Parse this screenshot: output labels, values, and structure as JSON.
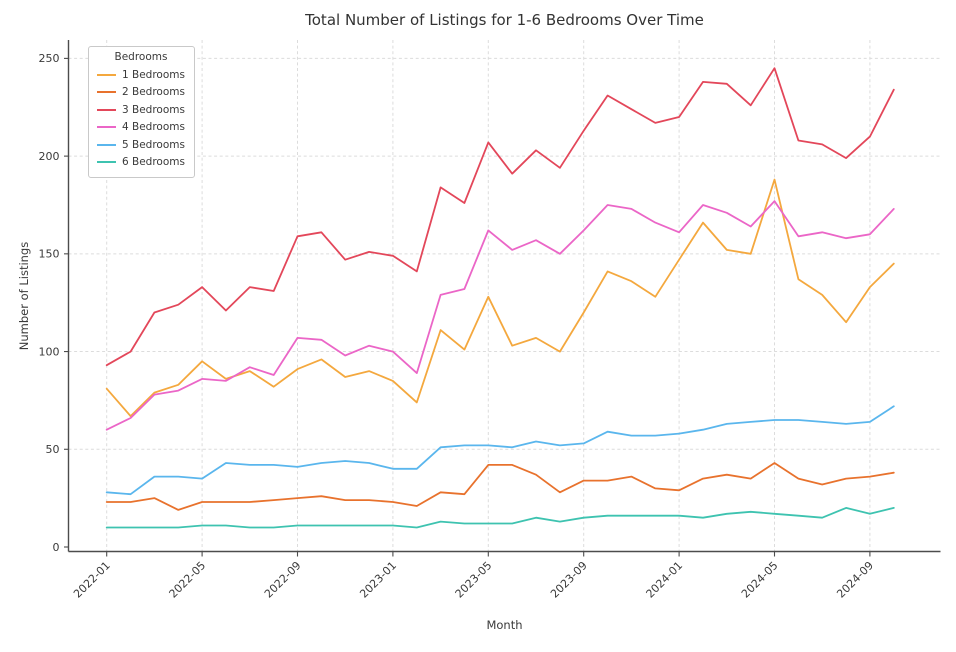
{
  "chart_data": {
    "type": "line",
    "title": "Total Number of Listings for 1-6 Bedrooms Over Time",
    "xlabel": "Month",
    "ylabel": "Number of Listings",
    "legend": {
      "title": "Bedrooms",
      "position": "upper-left"
    },
    "grid": true,
    "ylim": [
      0,
      250
    ],
    "yticks": [
      0,
      50,
      100,
      150,
      200,
      250
    ],
    "xticks": [
      "2022-01",
      "2022-05",
      "2022-09",
      "2023-01",
      "2023-05",
      "2023-09",
      "2024-01",
      "2024-05",
      "2024-09"
    ],
    "x": [
      "2022-01",
      "2022-02",
      "2022-03",
      "2022-04",
      "2022-05",
      "2022-06",
      "2022-07",
      "2022-08",
      "2022-09",
      "2022-10",
      "2022-11",
      "2022-12",
      "2023-01",
      "2023-02",
      "2023-03",
      "2023-04",
      "2023-05",
      "2023-06",
      "2023-07",
      "2023-08",
      "2023-09",
      "2023-10",
      "2023-11",
      "2023-12",
      "2024-01",
      "2024-02",
      "2024-03",
      "2024-04",
      "2024-05",
      "2024-06",
      "2024-07",
      "2024-08",
      "2024-09",
      "2024-10"
    ],
    "series": [
      {
        "name": "1 Bedrooms",
        "color": "#F4A83E",
        "values": [
          81,
          67,
          79,
          83,
          95,
          86,
          90,
          82,
          91,
          96,
          87,
          90,
          85,
          74,
          111,
          101,
          128,
          103,
          107,
          100,
          120,
          141,
          136,
          128,
          147,
          166,
          152,
          150,
          188,
          137,
          129,
          115,
          133,
          145
        ]
      },
      {
        "name": "2 Bedrooms",
        "color": "#E8722D",
        "values": [
          23,
          23,
          25,
          19,
          23,
          23,
          23,
          24,
          25,
          26,
          24,
          24,
          23,
          21,
          28,
          27,
          42,
          42,
          37,
          28,
          34,
          34,
          36,
          30,
          29,
          35,
          37,
          35,
          43,
          35,
          32,
          35,
          36,
          38
        ]
      },
      {
        "name": "3 Bedrooms",
        "color": "#E3475A",
        "values": [
          93,
          100,
          120,
          124,
          133,
          121,
          133,
          131,
          159,
          161,
          147,
          151,
          149,
          141,
          184,
          176,
          207,
          191,
          203,
          194,
          213,
          231,
          224,
          217,
          220,
          238,
          237,
          226,
          245,
          208,
          206,
          199,
          210,
          234
        ]
      },
      {
        "name": "4 Bedrooms",
        "color": "#EB66C7",
        "values": [
          60,
          66,
          78,
          80,
          86,
          85,
          92,
          88,
          107,
          106,
          98,
          103,
          100,
          89,
          129,
          132,
          162,
          152,
          157,
          150,
          162,
          175,
          173,
          166,
          161,
          175,
          171,
          164,
          177,
          159,
          161,
          158,
          160,
          173
        ]
      },
      {
        "name": "5 Bedrooms",
        "color": "#5AB6ED",
        "values": [
          28,
          27,
          36,
          36,
          35,
          43,
          42,
          42,
          41,
          43,
          44,
          43,
          40,
          40,
          51,
          52,
          52,
          51,
          54,
          52,
          53,
          59,
          57,
          57,
          58,
          60,
          63,
          64,
          65,
          65,
          64,
          63,
          64,
          72
        ]
      },
      {
        "name": "6 Bedrooms",
        "color": "#3EC3B0",
        "values": [
          10,
          10,
          10,
          10,
          11,
          11,
          10,
          10,
          11,
          11,
          11,
          11,
          11,
          10,
          13,
          12,
          12,
          12,
          15,
          13,
          15,
          16,
          16,
          16,
          16,
          15,
          17,
          18,
          17,
          16,
          15,
          20,
          17,
          20
        ]
      }
    ]
  }
}
